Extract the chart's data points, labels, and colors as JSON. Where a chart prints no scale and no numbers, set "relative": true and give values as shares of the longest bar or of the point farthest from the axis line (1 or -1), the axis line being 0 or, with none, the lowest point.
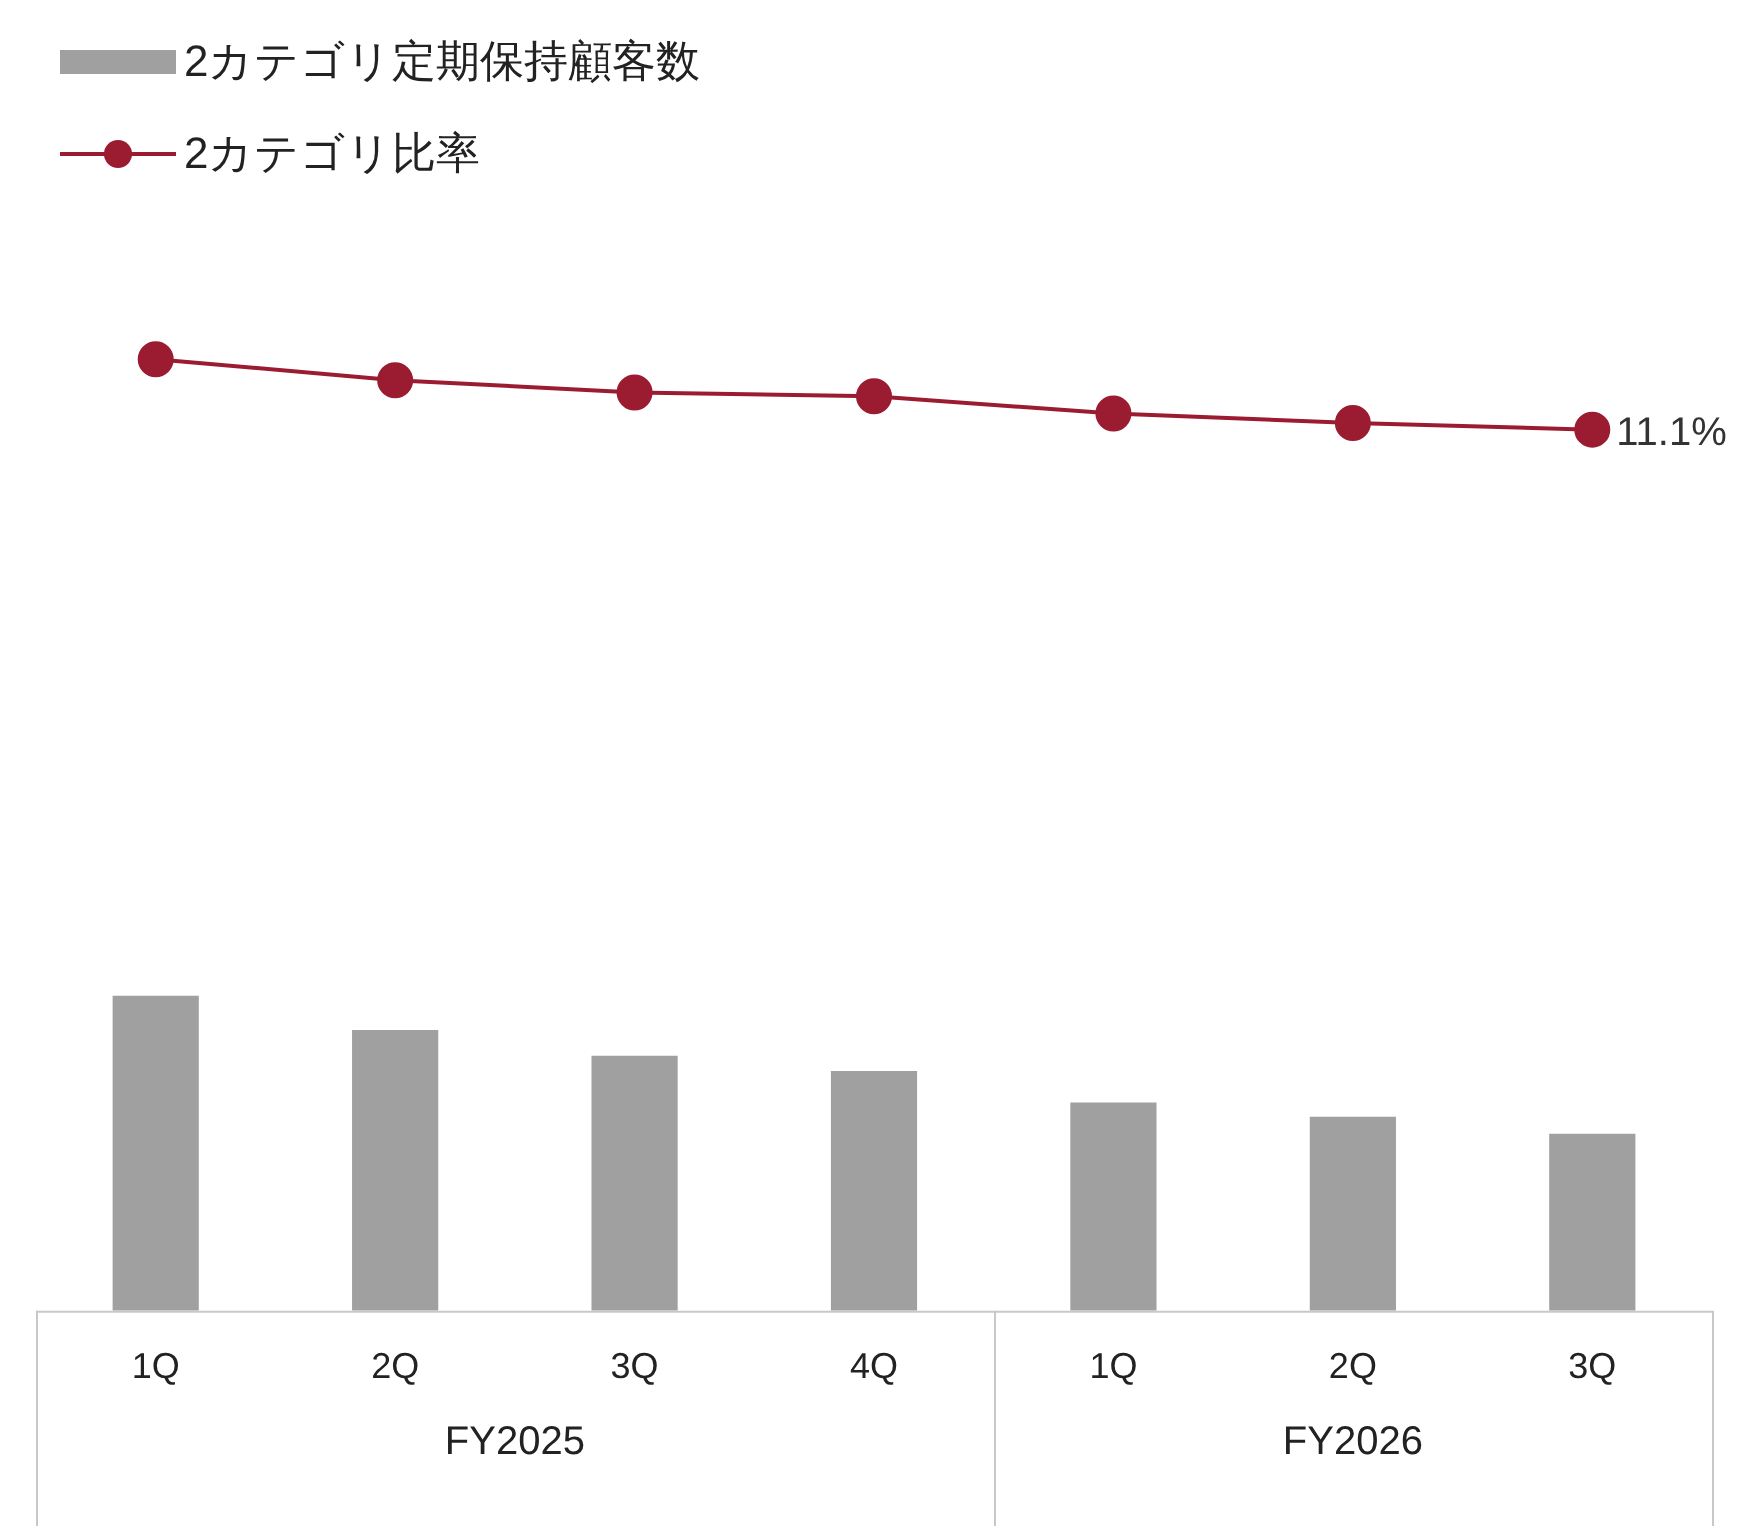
{
  "chart_data": {
    "type": "bar",
    "relative": true,
    "categories": [
      "1Q",
      "2Q",
      "3Q",
      "4Q",
      "1Q",
      "2Q",
      "3Q"
    ],
    "series": [
      {
        "name": "2カテゴリ定期保持顧客数",
        "color": "#a0a0a0",
        "values": [
          0.331,
          0.295,
          0.268,
          0.252,
          0.219,
          0.204,
          0.186
        ]
      },
      {
        "name": "2カテゴリ比率",
        "type": "line",
        "color": "#9b1c31",
        "marker": "circle",
        "values": [
          1,
          0.978,
          0.965,
          0.961,
          0.943,
          0.933,
          0.926
        ]
      }
    ],
    "annotations": [
      "FY2025",
      "FY2026",
      "11.1%"
    ],
    "legend": "top left",
    "grid": false
  }
}
